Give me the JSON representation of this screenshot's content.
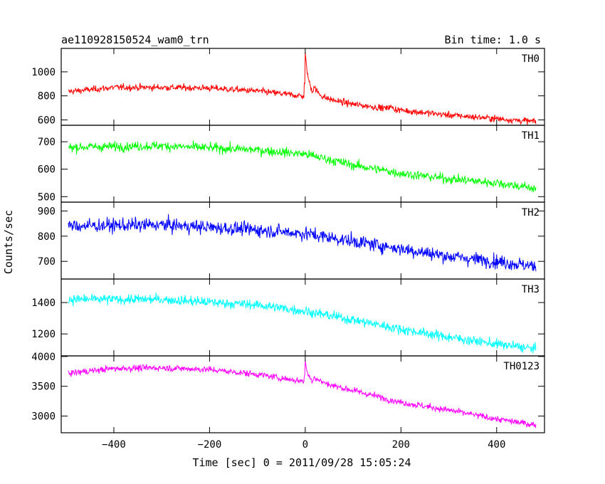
{
  "chart_data": {
    "type": "line",
    "title": "ae110928150524_wam0_trn",
    "bin_time_label": "Bin time: 1.0 s",
    "xlabel": "Time [sec] 0 = 2011/09/28 15:05:24",
    "ylabel": "Counts/sec",
    "xlim": [
      -510,
      500
    ],
    "xticks": [
      -400,
      -200,
      0,
      200,
      400
    ],
    "x_start": -495,
    "x_end": 482,
    "grid": false,
    "panels": [
      {
        "name": "TH0",
        "color": "#ff0000",
        "ylim": [
          555,
          1195
        ],
        "yticks": [
          600,
          800,
          1000
        ],
        "trend": [
          [
            -495,
            835
          ],
          [
            -400,
            870
          ],
          [
            -300,
            870
          ],
          [
            -200,
            865
          ],
          [
            -100,
            840
          ],
          [
            -20,
            805
          ],
          [
            30,
            780
          ],
          [
            100,
            730
          ],
          [
            200,
            680
          ],
          [
            300,
            640
          ],
          [
            400,
            610
          ],
          [
            482,
            585
          ]
        ],
        "noise": 35,
        "peaks": [
          [
            0,
            350,
            8
          ],
          [
            18,
            60,
            15
          ],
          [
            175,
            30,
            6
          ]
        ]
      },
      {
        "name": "TH1",
        "color": "#00ff00",
        "ylim": [
          480,
          760
        ],
        "yticks": [
          500,
          600,
          700
        ],
        "trend": [
          [
            -495,
            680
          ],
          [
            -300,
            685
          ],
          [
            -100,
            670
          ],
          [
            0,
            655
          ],
          [
            100,
            615
          ],
          [
            200,
            585
          ],
          [
            300,
            565
          ],
          [
            400,
            550
          ],
          [
            482,
            530
          ]
        ],
        "noise": 22,
        "peaks": []
      },
      {
        "name": "TH2",
        "color": "#0000ff",
        "ylim": [
          630,
          935
        ],
        "yticks": [
          700,
          800,
          900
        ],
        "trend": [
          [
            -495,
            840
          ],
          [
            -300,
            845
          ],
          [
            -100,
            825
          ],
          [
            0,
            810
          ],
          [
            100,
            780
          ],
          [
            200,
            750
          ],
          [
            300,
            720
          ],
          [
            400,
            700
          ],
          [
            482,
            680
          ]
        ],
        "noise": 35,
        "peaks": []
      },
      {
        "name": "TH3",
        "color": "#00ffff",
        "ylim": [
          1060,
          1550
        ],
        "yticks": [
          1200,
          1400
        ],
        "trend": [
          [
            -495,
            1420
          ],
          [
            -300,
            1420
          ],
          [
            -100,
            1385
          ],
          [
            0,
            1345
          ],
          [
            100,
            1290
          ],
          [
            200,
            1230
          ],
          [
            300,
            1180
          ],
          [
            400,
            1135
          ],
          [
            482,
            1105
          ]
        ],
        "noise": 40,
        "peaks": []
      },
      {
        "name": "TH0123",
        "color": "#ff00ff",
        "ylim": [
          2720,
          4010
        ],
        "yticks": [
          3000,
          3500,
          4000
        ],
        "trend": [
          [
            -495,
            3720
          ],
          [
            -400,
            3800
          ],
          [
            -300,
            3810
          ],
          [
            -200,
            3780
          ],
          [
            -100,
            3700
          ],
          [
            -20,
            3600
          ],
          [
            30,
            3560
          ],
          [
            100,
            3430
          ],
          [
            200,
            3230
          ],
          [
            300,
            3100
          ],
          [
            400,
            2950
          ],
          [
            482,
            2850
          ]
        ],
        "noise": 70,
        "peaks": [
          [
            0,
            330,
            6
          ],
          [
            18,
            80,
            14
          ]
        ]
      }
    ]
  }
}
